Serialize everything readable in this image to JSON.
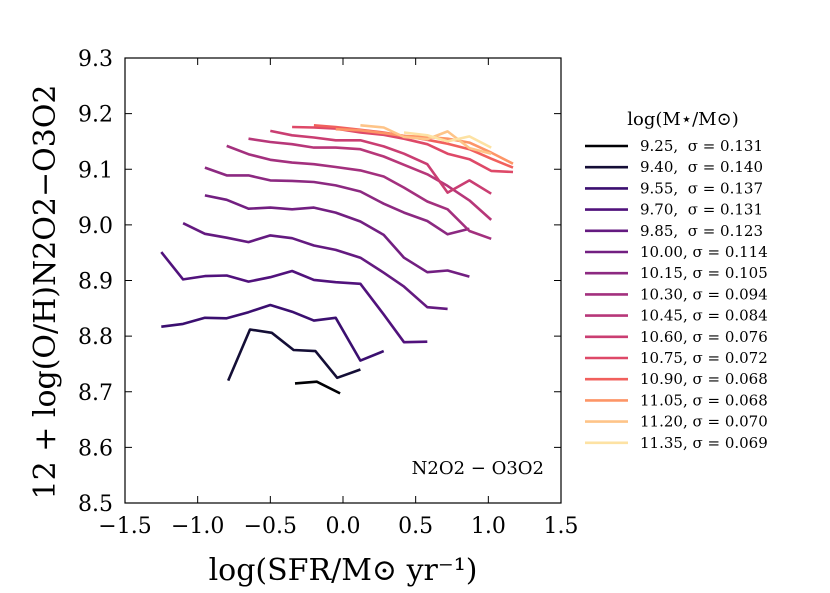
{
  "chart_data": {
    "type": "line",
    "xlabel": "log(SFR/M⊙ yr⁻¹)",
    "ylabel": "12 + log(O/H)N2O2−O3O2",
    "xlim": [
      -1.5,
      1.5
    ],
    "ylim": [
      8.5,
      9.3
    ],
    "xticks": [
      "−1.5",
      "−1.0",
      "−0.5",
      "0.0",
      "0.5",
      "1.0",
      "1.5"
    ],
    "yticks": [
      "8.5",
      "8.6",
      "8.7",
      "8.8",
      "8.9",
      "9.0",
      "9.1",
      "9.2",
      "9.3"
    ],
    "xtick_values": [
      -1.5,
      -1.0,
      -0.5,
      0.0,
      0.5,
      1.0,
      1.5
    ],
    "ytick_values": [
      8.5,
      8.6,
      8.7,
      8.8,
      8.9,
      9.0,
      9.1,
      9.2,
      9.3
    ],
    "grid": false,
    "legend_title": "log(M⋆/M⊙)",
    "legend_position": "outside-right",
    "annotation": "N2O2 − O3O2",
    "series": [
      {
        "name": "9.25,  σ = 0.131",
        "color": "#000004",
        "x": [
          -0.33,
          -0.18,
          -0.02
        ],
        "y": [
          8.715,
          8.718,
          8.697
        ]
      },
      {
        "name": "9.40,  σ = 0.140",
        "color": "#140e36",
        "x": [
          -0.79,
          -0.64,
          -0.49,
          -0.34,
          -0.19,
          -0.04,
          0.12
        ],
        "y": [
          8.72,
          8.812,
          8.806,
          8.775,
          8.773,
          8.725,
          8.74
        ]
      },
      {
        "name": "9.55,  σ = 0.137",
        "color": "#3b0f70",
        "x": [
          -1.25,
          -1.1,
          -0.95,
          -0.8,
          -0.65,
          -0.5,
          -0.35,
          -0.2,
          -0.05,
          0.12,
          0.28
        ],
        "y": [
          8.817,
          8.822,
          8.833,
          8.832,
          8.843,
          8.856,
          8.844,
          8.828,
          8.833,
          8.756,
          8.773
        ]
      },
      {
        "name": "9.70,  σ = 0.131",
        "color": "#51127c",
        "x": [
          -1.25,
          -1.1,
          -0.95,
          -0.8,
          -0.65,
          -0.5,
          -0.35,
          -0.2,
          -0.05,
          0.12,
          0.28,
          0.42,
          0.58
        ],
        "y": [
          8.951,
          8.902,
          8.908,
          8.909,
          8.898,
          8.906,
          8.917,
          8.901,
          8.897,
          8.894,
          8.839,
          8.789,
          8.79
        ]
      },
      {
        "name": "9.85,  σ = 0.123",
        "color": "#641a80",
        "x": [
          -1.1,
          -0.95,
          -0.8,
          -0.65,
          -0.5,
          -0.35,
          -0.2,
          -0.05,
          0.12,
          0.28,
          0.42,
          0.58,
          0.72
        ],
        "y": [
          9.003,
          8.984,
          8.977,
          8.969,
          8.981,
          8.976,
          8.963,
          8.955,
          8.941,
          8.914,
          8.889,
          8.852,
          8.849
        ]
      },
      {
        "name": "10.00, σ = 0.114",
        "color": "#721f81",
        "x": [
          -0.95,
          -0.8,
          -0.65,
          -0.5,
          -0.35,
          -0.2,
          -0.05,
          0.12,
          0.28,
          0.42,
          0.58,
          0.72,
          0.87
        ],
        "y": [
          9.053,
          9.045,
          9.029,
          9.031,
          9.028,
          9.031,
          9.022,
          9.006,
          8.982,
          8.941,
          8.915,
          8.918,
          8.907
        ]
      },
      {
        "name": "10.15, σ = 0.105",
        "color": "#8c2981",
        "x": [
          -0.95,
          -0.8,
          -0.65,
          -0.5,
          -0.35,
          -0.2,
          -0.05,
          0.12,
          0.28,
          0.42,
          0.58,
          0.72,
          0.87
        ],
        "y": [
          9.103,
          9.089,
          9.089,
          9.08,
          9.079,
          9.077,
          9.071,
          9.06,
          9.038,
          9.022,
          9.007,
          8.983,
          8.993
        ]
      },
      {
        "name": "10.30, σ = 0.094",
        "color": "#a3307e",
        "x": [
          -0.8,
          -0.65,
          -0.5,
          -0.35,
          -0.2,
          -0.05,
          0.12,
          0.28,
          0.42,
          0.58,
          0.72,
          0.87,
          1.02
        ],
        "y": [
          9.142,
          9.127,
          9.117,
          9.112,
          9.109,
          9.104,
          9.098,
          9.087,
          9.067,
          9.042,
          9.028,
          8.989,
          8.975
        ]
      },
      {
        "name": "10.45, σ = 0.084",
        "color": "#b73779",
        "x": [
          -0.65,
          -0.5,
          -0.35,
          -0.2,
          -0.05,
          0.12,
          0.28,
          0.42,
          0.58,
          0.72,
          0.87,
          1.02
        ],
        "y": [
          9.155,
          9.149,
          9.145,
          9.139,
          9.139,
          9.136,
          9.123,
          9.108,
          9.091,
          9.07,
          9.044,
          9.009
        ]
      },
      {
        "name": "10.60, σ = 0.076",
        "color": "#ca3e72",
        "x": [
          -0.5,
          -0.35,
          -0.2,
          -0.05,
          0.12,
          0.28,
          0.42,
          0.58,
          0.72,
          0.87,
          1.02
        ],
        "y": [
          9.169,
          9.161,
          9.157,
          9.152,
          9.152,
          9.141,
          9.128,
          9.109,
          9.058,
          9.08,
          9.056
        ]
      },
      {
        "name": "10.75, σ = 0.072",
        "color": "#de4968",
        "x": [
          -0.35,
          -0.2,
          -0.05,
          0.12,
          0.28,
          0.42,
          0.58,
          0.72,
          0.87,
          1.02,
          1.17
        ],
        "y": [
          9.176,
          9.175,
          9.173,
          9.166,
          9.162,
          9.155,
          9.145,
          9.128,
          9.118,
          9.097,
          9.095
        ]
      },
      {
        "name": "10.90, σ = 0.068",
        "color": "#f1605d",
        "x": [
          -0.2,
          -0.05,
          0.12,
          0.28,
          0.42,
          0.58,
          0.72,
          0.87,
          1.02,
          1.17
        ],
        "y": [
          9.179,
          9.176,
          9.171,
          9.166,
          9.16,
          9.153,
          9.146,
          9.136,
          9.119,
          9.103
        ]
      },
      {
        "name": "11.05, σ = 0.068",
        "color": "#fd9567",
        "x": [
          -0.05,
          0.12,
          0.28,
          0.42,
          0.58,
          0.72,
          0.87,
          1.02,
          1.17
        ],
        "y": [
          9.172,
          9.17,
          9.165,
          9.16,
          9.158,
          9.155,
          9.148,
          9.13,
          9.11
        ]
      },
      {
        "name": "11.20, σ = 0.070",
        "color": "#fec488",
        "x": [
          0.12,
          0.28,
          0.42,
          0.58,
          0.72,
          0.87,
          1.02
        ],
        "y": [
          9.179,
          9.175,
          9.158,
          9.154,
          9.168,
          9.138,
          9.128
        ]
      },
      {
        "name": "11.35, σ = 0.069",
        "color": "#fde2a3",
        "x": [
          0.42,
          0.58,
          0.72,
          0.87,
          1.02
        ],
        "y": [
          9.166,
          9.161,
          9.15,
          9.159,
          9.139
        ]
      }
    ]
  }
}
